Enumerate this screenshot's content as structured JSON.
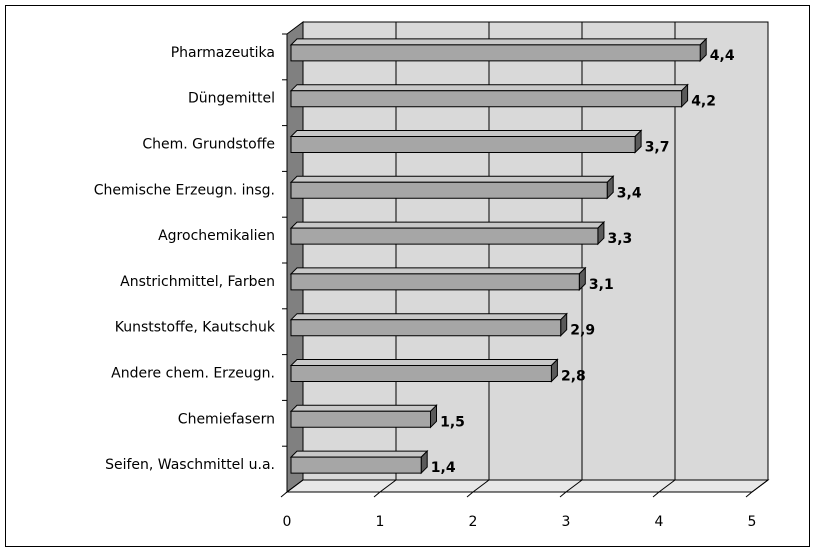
{
  "chart_data": {
    "type": "bar",
    "orientation": "horizontal",
    "categories": [
      "Pharmazeutika",
      "Düngemittel",
      "Chem. Grundstoffe",
      "Chemische Erzeugn. insg.",
      "Agrochemikalien",
      "Anstrichmittel, Farben",
      "Kunststoffe, Kautschuk",
      "Andere chem. Erzeugn.",
      "Chemiefasern",
      "Seifen, Waschmittel u.a."
    ],
    "values": [
      4.4,
      4.2,
      3.7,
      3.4,
      3.3,
      3.1,
      2.9,
      2.8,
      1.5,
      1.4
    ],
    "value_labels": [
      "4,4",
      "4,2",
      "3,7",
      "3,4",
      "3,3",
      "3,1",
      "2,9",
      "2,8",
      "1,5",
      "1,4"
    ],
    "color": "#a6a6a6",
    "xlim": [
      0,
      5
    ],
    "xticks": [
      0,
      1,
      2,
      3,
      4,
      5
    ],
    "grid": true
  }
}
